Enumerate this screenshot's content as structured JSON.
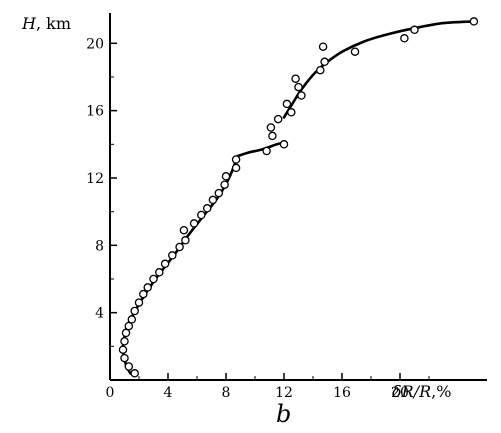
{
  "chart_data": {
    "type": "scatter",
    "panel_label": "b",
    "ylabel_var": "H",
    "ylabel_unit": ", km",
    "xlabel_var": "δR/R",
    "xlabel_unit": ",%",
    "xlim": [
      0,
      26
    ],
    "ylim": [
      0,
      21.8
    ],
    "xticks": [
      0,
      4,
      8,
      12,
      16,
      20
    ],
    "yticks": [
      4,
      8,
      12,
      16,
      20
    ],
    "xtick_labels": [
      "0",
      "4",
      "8",
      "12",
      "16",
      "20"
    ],
    "ytick_labels": [
      "4",
      "8",
      "12",
      "16",
      "20"
    ],
    "grid": false,
    "series": [
      {
        "kind": "scatter",
        "marker": "open-circle",
        "points": [
          [
            1.7,
            0.4
          ],
          [
            1.3,
            0.8
          ],
          [
            1.0,
            1.3
          ],
          [
            0.9,
            1.8
          ],
          [
            1.0,
            2.3
          ],
          [
            1.1,
            2.8
          ],
          [
            1.3,
            3.2
          ],
          [
            1.5,
            3.6
          ],
          [
            1.7,
            4.1
          ],
          [
            2.0,
            4.6
          ],
          [
            2.3,
            5.1
          ],
          [
            2.6,
            5.5
          ],
          [
            3.0,
            6.0
          ],
          [
            3.4,
            6.4
          ],
          [
            3.8,
            6.9
          ],
          [
            4.3,
            7.4
          ],
          [
            4.8,
            7.9
          ],
          [
            5.2,
            8.3
          ],
          [
            5.1,
            8.9
          ],
          [
            5.8,
            9.3
          ],
          [
            6.3,
            9.8
          ],
          [
            6.7,
            10.2
          ],
          [
            7.1,
            10.7
          ],
          [
            7.5,
            11.1
          ],
          [
            7.9,
            11.6
          ],
          [
            8.0,
            12.1
          ],
          [
            8.7,
            12.6
          ],
          [
            8.7,
            13.1
          ],
          [
            10.8,
            13.6
          ],
          [
            12.0,
            14.0
          ],
          [
            11.2,
            14.5
          ],
          [
            11.1,
            15.0
          ],
          [
            11.6,
            15.5
          ],
          [
            12.5,
            15.9
          ],
          [
            12.2,
            16.4
          ],
          [
            13.2,
            16.9
          ],
          [
            13.0,
            17.4
          ],
          [
            12.8,
            17.9
          ],
          [
            14.5,
            18.4
          ],
          [
            14.8,
            18.9
          ],
          [
            14.7,
            19.8
          ],
          [
            16.9,
            19.5
          ],
          [
            20.3,
            20.3
          ],
          [
            21.0,
            20.8
          ],
          [
            25.1,
            21.3
          ]
        ]
      },
      {
        "kind": "line",
        "segments": [
          [
            [
              1.4,
              0.4
            ],
            [
              1.1,
              0.9
            ],
            [
              0.9,
              1.8
            ],
            [
              1.0,
              2.6
            ],
            [
              1.3,
              3.4
            ],
            [
              1.8,
              4.2
            ],
            [
              2.5,
              5.2
            ],
            [
              3.4,
              6.3
            ],
            [
              4.4,
              7.4
            ],
            [
              5.4,
              8.6
            ],
            [
              6.4,
              9.7
            ],
            [
              7.4,
              10.8
            ],
            [
              8.1,
              11.8
            ],
            [
              8.5,
              12.6
            ],
            [
              8.8,
              13.3
            ]
          ],
          [
            [
              8.8,
              13.3
            ],
            [
              9.5,
              13.5
            ],
            [
              10.5,
              13.7
            ],
            [
              11.5,
              14.0
            ],
            [
              12.0,
              14.1
            ]
          ],
          [
            [
              12.0,
              15.6
            ],
            [
              12.5,
              16.3
            ],
            [
              13.0,
              17.0
            ],
            [
              13.5,
              17.6
            ],
            [
              14.2,
              18.3
            ],
            [
              15.0,
              18.9
            ],
            [
              16.0,
              19.5
            ],
            [
              17.5,
              20.1
            ],
            [
              19.0,
              20.5
            ],
            [
              21.0,
              20.9
            ],
            [
              23.0,
              21.2
            ],
            [
              25.1,
              21.3
            ]
          ]
        ]
      }
    ]
  }
}
